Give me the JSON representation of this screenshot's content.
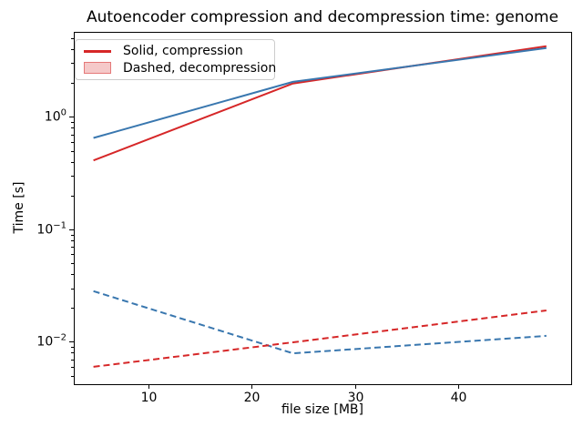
{
  "chart_data": {
    "type": "line",
    "title": "Autoencoder compression and decompression time: genome",
    "xlabel": "file size [MB]",
    "ylabel": "Time [s]",
    "x": [
      4.7,
      24,
      48.5
    ],
    "series": [
      {
        "name": "compression-red-solid",
        "group": "compression",
        "style": "solid",
        "color": "#d62728",
        "values": [
          0.41,
          1.98,
          4.25
        ]
      },
      {
        "name": "compression-blue-solid",
        "group": "compression",
        "style": "solid",
        "color": "#3977af",
        "values": [
          0.65,
          2.05,
          4.1
        ]
      },
      {
        "name": "decompression-blue-dashed",
        "group": "decompression",
        "style": "dashed",
        "color": "#3977af",
        "values": [
          0.0282,
          0.0079,
          0.0113
        ]
      },
      {
        "name": "decompression-red-dashed",
        "group": "decompression",
        "style": "dashed",
        "color": "#d62728",
        "values": [
          0.006,
          0.0099,
          0.019
        ]
      }
    ],
    "xscale": "linear",
    "yscale": "log",
    "xlim": [
      2.8,
      50.9
    ],
    "ylim": [
      0.0042,
      5.7
    ],
    "xticks": [
      10,
      20,
      30,
      40
    ],
    "xtick_labels": [
      "10",
      "20",
      "30",
      "40"
    ],
    "ytick_exponents": [
      0,
      -1,
      -2
    ],
    "ytick_base": "10",
    "grid": false,
    "legend": {
      "position": "upper-left",
      "entries": [
        {
          "type": "line",
          "color": "#d62728",
          "label": "Solid, compression"
        },
        {
          "type": "patch",
          "fill": "rgba(214,39,40,0.25)",
          "edge": "rgba(214,39,40,0.5)",
          "label": "Dashed, decompression"
        }
      ]
    },
    "colors": {
      "red": "#d62728",
      "blue": "#3977af",
      "axis": "#000000",
      "legend_border": "#cccccc"
    }
  }
}
